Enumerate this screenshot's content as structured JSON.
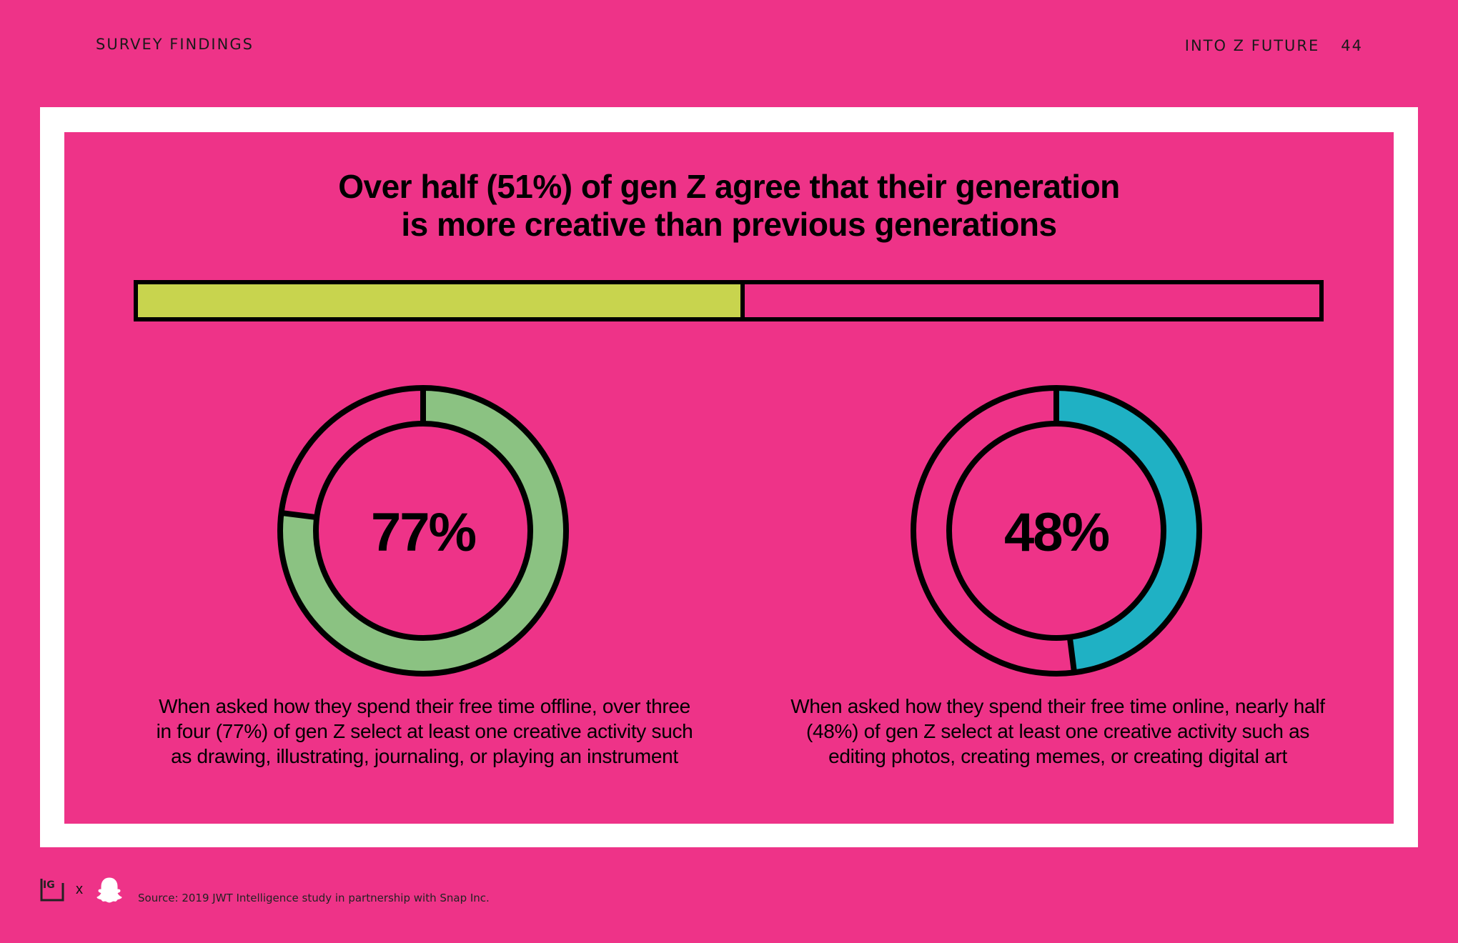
{
  "header": {
    "section": "SURVEY FINDINGS",
    "publication": "INTO Z FUTURE",
    "page_number": "44"
  },
  "colors": {
    "background": "#EE3388",
    "bar_fill": "#C8D44E",
    "ring_left": "#8BC282",
    "ring_right": "#1FB1C4"
  },
  "chart_data": [
    {
      "type": "bar",
      "title": "Over half (51%) of gen Z agree that their generation is more creative than previous generations",
      "title_lines": [
        "Over half (51%) of gen Z agree that their generation",
        "is more creative than previous generations"
      ],
      "values": [
        51
      ],
      "ylim": [
        0,
        100
      ]
    },
    {
      "type": "pie",
      "label": "77%",
      "values": [
        77,
        23
      ],
      "caption": "When asked how they spend their free time offline, over three in four (77%) of gen Z select at least one creative activity such as drawing, illustrating, journaling, or playing an instrument"
    },
    {
      "type": "pie",
      "label": "48%",
      "values": [
        48,
        52
      ],
      "caption": "When asked how they spend their free time online, nearly half (48%) of gen Z select at least one creative activity such as editing photos, creating memes, or creating digital art"
    }
  ],
  "footer": {
    "logo_separator": "x",
    "source": "Source: 2019 JWT Intelligence study in partnership with Snap Inc."
  },
  "icons": [
    "ig-logo-icon",
    "snapchat-ghost-icon"
  ]
}
